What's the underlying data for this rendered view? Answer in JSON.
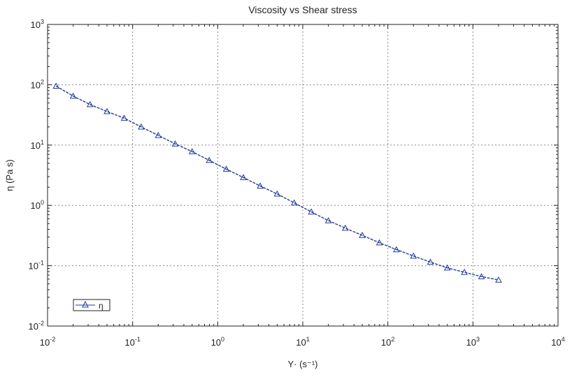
{
  "chart_data": {
    "type": "scatter",
    "title": "Viscosity vs Shear stress",
    "xlabel": "Y· (s⁻¹)",
    "ylabel": "η (Pa s)",
    "xscale": "log",
    "yscale": "log",
    "xlim": [
      0.01,
      10000
    ],
    "ylim": [
      0.01,
      1000
    ],
    "grid": true,
    "legend_position": "bottom-left",
    "x_ticks": [
      {
        "base": "10",
        "exp": "-2"
      },
      {
        "base": "10",
        "exp": "-1"
      },
      {
        "base": "10",
        "exp": "0"
      },
      {
        "base": "10",
        "exp": "1"
      },
      {
        "base": "10",
        "exp": "2"
      },
      {
        "base": "10",
        "exp": "3"
      },
      {
        "base": "10",
        "exp": "4"
      }
    ],
    "y_ticks": [
      {
        "base": "10",
        "exp": "-2"
      },
      {
        "base": "10",
        "exp": "-1"
      },
      {
        "base": "10",
        "exp": "0"
      },
      {
        "base": "10",
        "exp": "1"
      },
      {
        "base": "10",
        "exp": "2"
      },
      {
        "base": "10",
        "exp": "3"
      }
    ],
    "series": [
      {
        "name": "η",
        "color": "#1f3d99",
        "marker": "triangle-open",
        "x": [
          0.0126,
          0.02,
          0.0316,
          0.05,
          0.0794,
          0.126,
          0.2,
          0.316,
          0.5,
          0.794,
          1.26,
          2.0,
          3.16,
          5.0,
          7.94,
          12.6,
          20.0,
          31.6,
          50.0,
          79.4,
          126,
          200,
          316,
          500,
          794,
          1260,
          2000
        ],
        "y": [
          95,
          65,
          47,
          36,
          28,
          20,
          14.5,
          10.5,
          7.8,
          5.6,
          4.0,
          2.9,
          2.1,
          1.55,
          1.1,
          0.78,
          0.56,
          0.42,
          0.32,
          0.24,
          0.185,
          0.145,
          0.115,
          0.092,
          0.078,
          0.066,
          0.058
        ]
      }
    ]
  }
}
